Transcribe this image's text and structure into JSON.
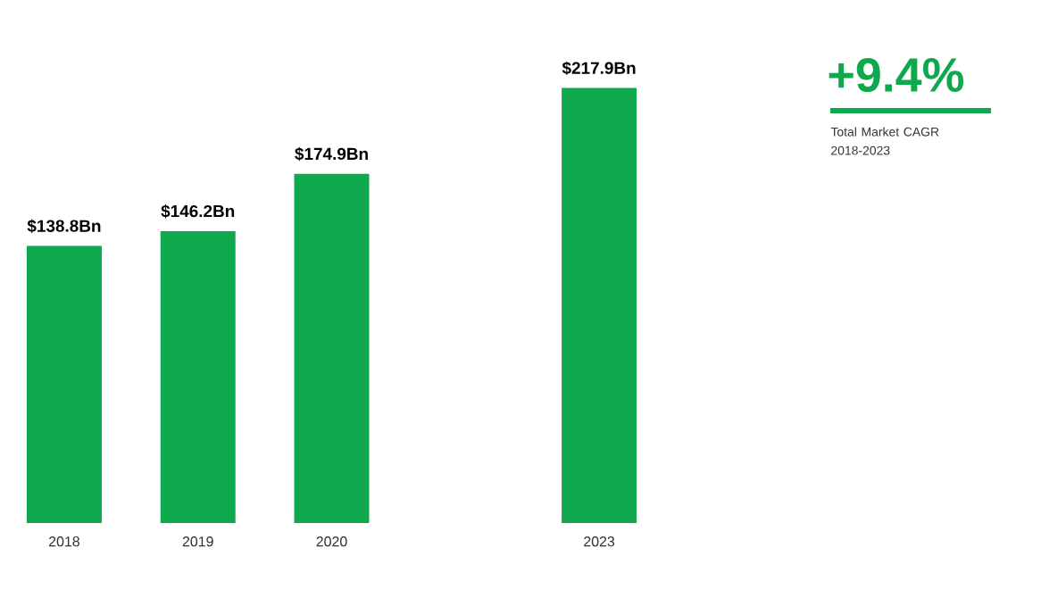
{
  "chart_data": {
    "type": "bar",
    "categories": [
      "2018",
      "2019",
      "2020",
      null,
      "2023"
    ],
    "values": [
      138.8,
      146.2,
      174.9,
      null,
      217.9
    ],
    "value_labels": [
      "$138.8Bn",
      "$146.2Bn",
      "$174.9Bn",
      null,
      "$217.9Bn"
    ],
    "color": "#10a84c",
    "annotations": [
      "+9.4%",
      "Total Market CAGR 2018-2023"
    ]
  }
}
